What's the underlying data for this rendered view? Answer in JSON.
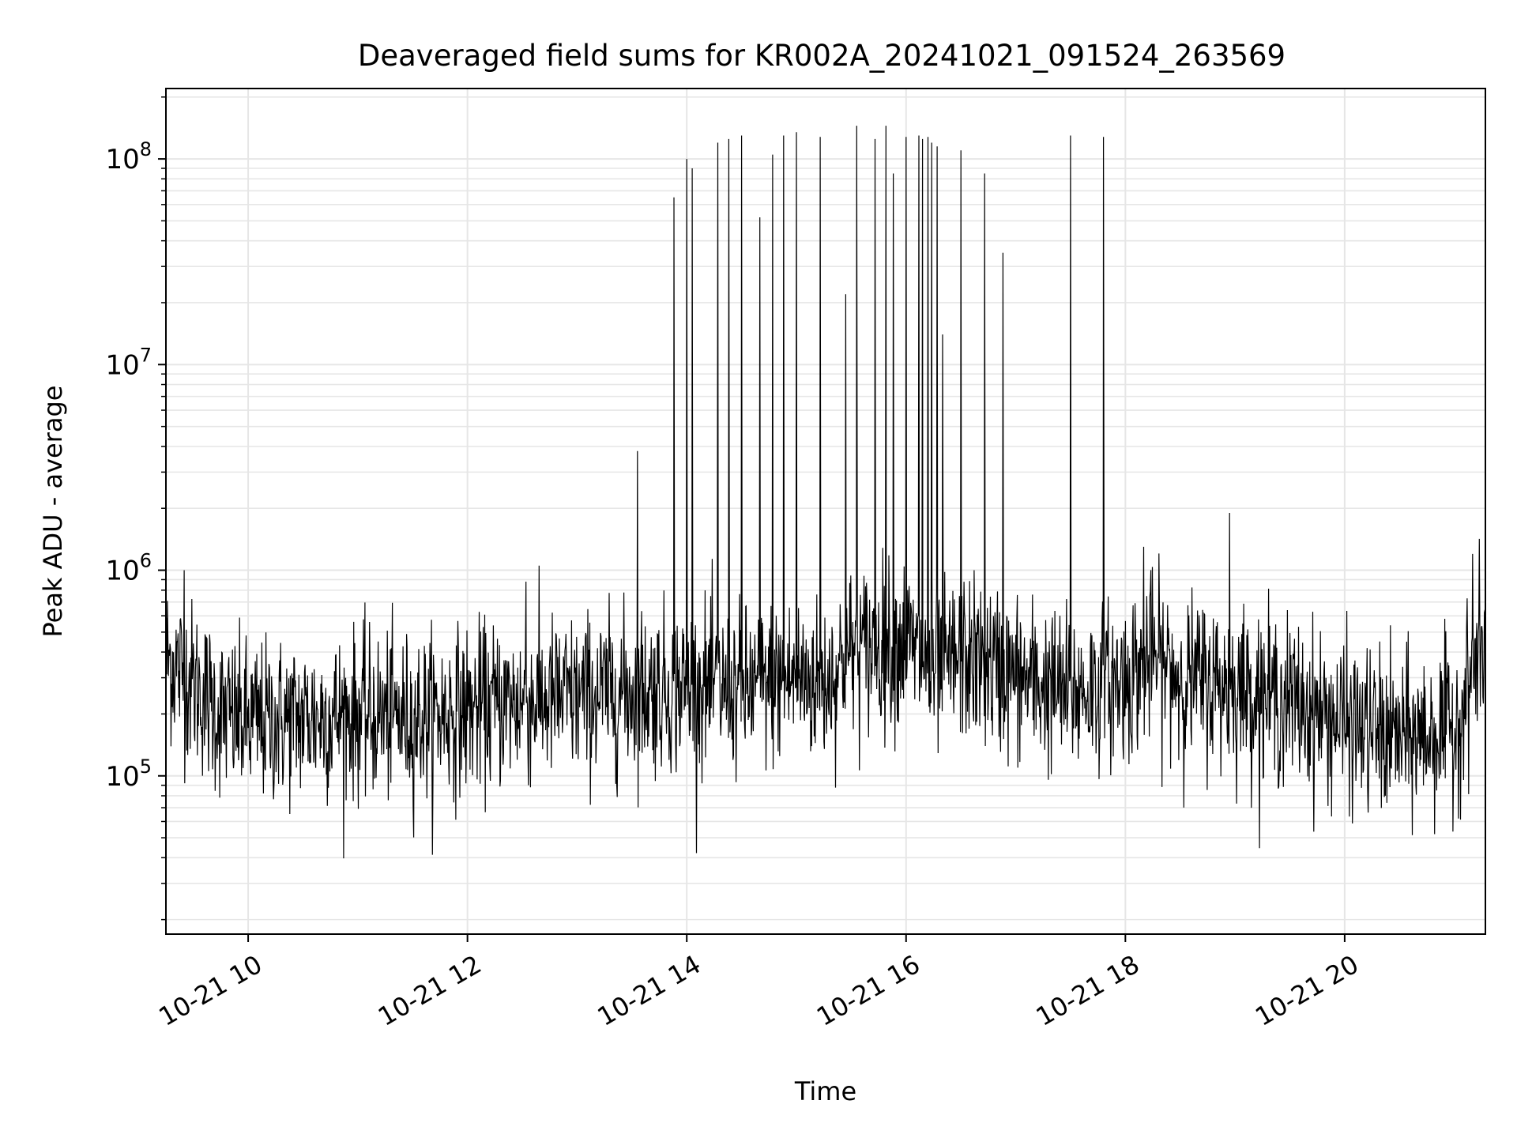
{
  "chart_data": {
    "type": "line",
    "title": "Deaveraged field sums for KR002A_20241021_091524_263569",
    "xlabel": "Time",
    "ylabel": "Peak ADU - average",
    "x_ticks": [
      "10-21 10",
      "10-21 12",
      "10-21 14",
      "10-21 16",
      "10-21 18",
      "10-21 20"
    ],
    "x_tick_hours": [
      10,
      12,
      14,
      16,
      18,
      20
    ],
    "xlim": [
      "2024-10-21 09:15",
      "2024-10-21 21:17"
    ],
    "yscale": "log",
    "ylim": [
      17000,
      220000000
    ],
    "y_ticks": [
      {
        "base": "10",
        "exp": "5",
        "value": 100000
      },
      {
        "base": "10",
        "exp": "6",
        "value": 1000000
      },
      {
        "base": "10",
        "exp": "7",
        "value": 10000000
      },
      {
        "base": "10",
        "exp": "8",
        "value": 100000000
      }
    ],
    "grid": "major and minor",
    "line_color": "#000000",
    "grid_color": "#e6e6e6",
    "series": [
      {
        "baseline": {
          "x": [
            "2024-10-21 09:15",
            "2024-10-21 09:30",
            "2024-10-21 09:45",
            "2024-10-21 10:00",
            "2024-10-21 10:30",
            "2024-10-21 11:00",
            "2024-10-21 11:30",
            "2024-10-21 12:00",
            "2024-10-21 12:30",
            "2024-10-21 13:00",
            "2024-10-21 13:30",
            "2024-10-21 14:00",
            "2024-10-21 14:30",
            "2024-10-21 15:00",
            "2024-10-21 15:15",
            "2024-10-21 15:30",
            "2024-10-21 16:00",
            "2024-10-21 16:15",
            "2024-10-21 16:30",
            "2024-10-21 17:00",
            "2024-10-21 17:30",
            "2024-10-21 18:00",
            "2024-10-21 18:15",
            "2024-10-21 18:30",
            "2024-10-21 19:00",
            "2024-10-21 19:30",
            "2024-10-21 20:00",
            "2024-10-21 20:30",
            "2024-10-21 21:00",
            "2024-10-21 21:17"
          ],
          "y": [
            380000,
            280000,
            200000,
            180000,
            190000,
            200000,
            190000,
            210000,
            230000,
            240000,
            260000,
            270000,
            260000,
            300000,
            280000,
            400000,
            450000,
            300000,
            380000,
            300000,
            250000,
            290000,
            380000,
            300000,
            270000,
            230000,
            180000,
            150000,
            170000,
            450000
          ]
        },
        "spikes": [
          {
            "x": "2024-10-21 09:25",
            "y": 1000000
          },
          {
            "x": "2024-10-21 12:32",
            "y": 880000
          },
          {
            "x": "2024-10-21 13:33",
            "y": 3800000
          },
          {
            "x": "2024-10-21 13:53",
            "y": 65000000
          },
          {
            "x": "2024-10-21 14:00",
            "y": 100000000
          },
          {
            "x": "2024-10-21 14:03",
            "y": 90000000
          },
          {
            "x": "2024-10-21 14:17",
            "y": 120000000
          },
          {
            "x": "2024-10-21 14:23",
            "y": 125000000
          },
          {
            "x": "2024-10-21 14:30",
            "y": 130000000
          },
          {
            "x": "2024-10-21 14:40",
            "y": 52000000
          },
          {
            "x": "2024-10-21 14:47",
            "y": 105000000
          },
          {
            "x": "2024-10-21 14:53",
            "y": 130000000
          },
          {
            "x": "2024-10-21 15:00",
            "y": 135000000
          },
          {
            "x": "2024-10-21 15:13",
            "y": 128000000
          },
          {
            "x": "2024-10-21 15:27",
            "y": 22000000
          },
          {
            "x": "2024-10-21 15:33",
            "y": 145000000
          },
          {
            "x": "2024-10-21 15:43",
            "y": 125000000
          },
          {
            "x": "2024-10-21 15:49",
            "y": 145000000
          },
          {
            "x": "2024-10-21 15:53",
            "y": 85000000
          },
          {
            "x": "2024-10-21 16:00",
            "y": 128000000
          },
          {
            "x": "2024-10-21 16:07",
            "y": 130000000
          },
          {
            "x": "2024-10-21 16:09",
            "y": 125000000
          },
          {
            "x": "2024-10-21 16:12",
            "y": 128000000
          },
          {
            "x": "2024-10-21 16:14",
            "y": 120000000
          },
          {
            "x": "2024-10-21 16:17",
            "y": 115000000
          },
          {
            "x": "2024-10-21 16:20",
            "y": 14000000
          },
          {
            "x": "2024-10-21 16:30",
            "y": 110000000
          },
          {
            "x": "2024-10-21 16:43",
            "y": 85000000
          },
          {
            "x": "2024-10-21 16:53",
            "y": 35000000
          },
          {
            "x": "2024-10-21 17:30",
            "y": 130000000
          },
          {
            "x": "2024-10-21 17:48",
            "y": 128000000
          },
          {
            "x": "2024-10-21 18:10",
            "y": 1300000
          },
          {
            "x": "2024-10-21 18:57",
            "y": 1900000
          },
          {
            "x": "2024-10-21 21:10",
            "y": 1200000
          }
        ]
      }
    ]
  }
}
